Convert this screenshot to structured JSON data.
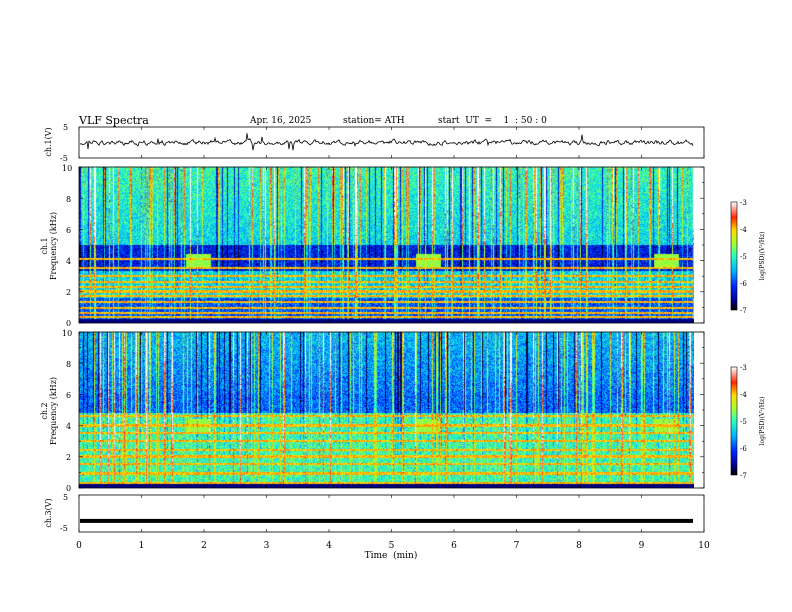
{
  "header": {
    "title": "VLF  Spectra",
    "date": "Apr. 16,  2025",
    "station": "station= ATH",
    "start": "start  UT  =    1  : 50 : 0"
  },
  "chart_data": [
    {
      "type": "line",
      "panel": "ch1-waveform",
      "ylabel": "ch.1(V)",
      "ylim": [
        -5,
        5
      ],
      "yticks": [
        "5",
        "-5"
      ],
      "xlim": [
        0,
        10
      ],
      "color": "#000000"
    },
    {
      "type": "heatmap",
      "panel": "ch1-spectrogram",
      "ylabel_lines": [
        "ch.1",
        "Frequency  (kHz)"
      ],
      "ylim": [
        0,
        10
      ],
      "yticks": [
        "0",
        "2",
        "4",
        "6",
        "8",
        "10"
      ],
      "xlim": [
        0,
        10
      ],
      "colorbar": {
        "label": "log(PSD)(V²/Hz)",
        "range": [
          -7,
          -3
        ],
        "ticks": [
          "-3",
          "-4",
          "-5",
          "-6",
          "-7"
        ]
      },
      "features": {
        "hum_lines_khz": [
          0.1,
          0.35,
          0.6,
          0.95,
          1.3,
          1.7,
          2.0,
          2.3,
          2.6,
          3.0,
          3.5,
          4.1
        ],
        "bursts_min": [
          1.9,
          5.6,
          9.4
        ],
        "burst_band_khz": [
          3.6,
          4.4
        ]
      }
    },
    {
      "type": "heatmap",
      "panel": "ch2-spectrogram",
      "ylabel_lines": [
        "ch.2",
        "Frequency  (kHz)"
      ],
      "ylim": [
        0,
        10
      ],
      "yticks": [
        "0",
        "2",
        "4",
        "6",
        "8",
        "10"
      ],
      "xlim": [
        0,
        10
      ],
      "colorbar": {
        "label": "log(PSD)(V²/Hz)",
        "range": [
          -7,
          -3
        ],
        "ticks": [
          "-3",
          "-4",
          "-5",
          "-6",
          "-7"
        ]
      },
      "features": {
        "hum_lines_khz": [
          0.3,
          0.9,
          1.5,
          2.0,
          2.4,
          3.0,
          3.5,
          4.0,
          4.6
        ],
        "bursts_min": [
          1.9,
          5.6,
          9.4
        ],
        "burst_band_khz": [
          3.6,
          4.4
        ]
      }
    },
    {
      "type": "line",
      "panel": "ch3-waveform",
      "ylabel": "ch.3(V)",
      "ylim": [
        -5,
        5
      ],
      "yticks": [
        "5",
        "-5"
      ],
      "xlim": [
        0,
        10
      ],
      "level": -2,
      "color": "#000000"
    }
  ],
  "xaxis": {
    "label": "Time  (min)",
    "ticks": [
      "0",
      "1",
      "2",
      "3",
      "4",
      "5",
      "6",
      "7",
      "8",
      "9",
      "10"
    ]
  }
}
